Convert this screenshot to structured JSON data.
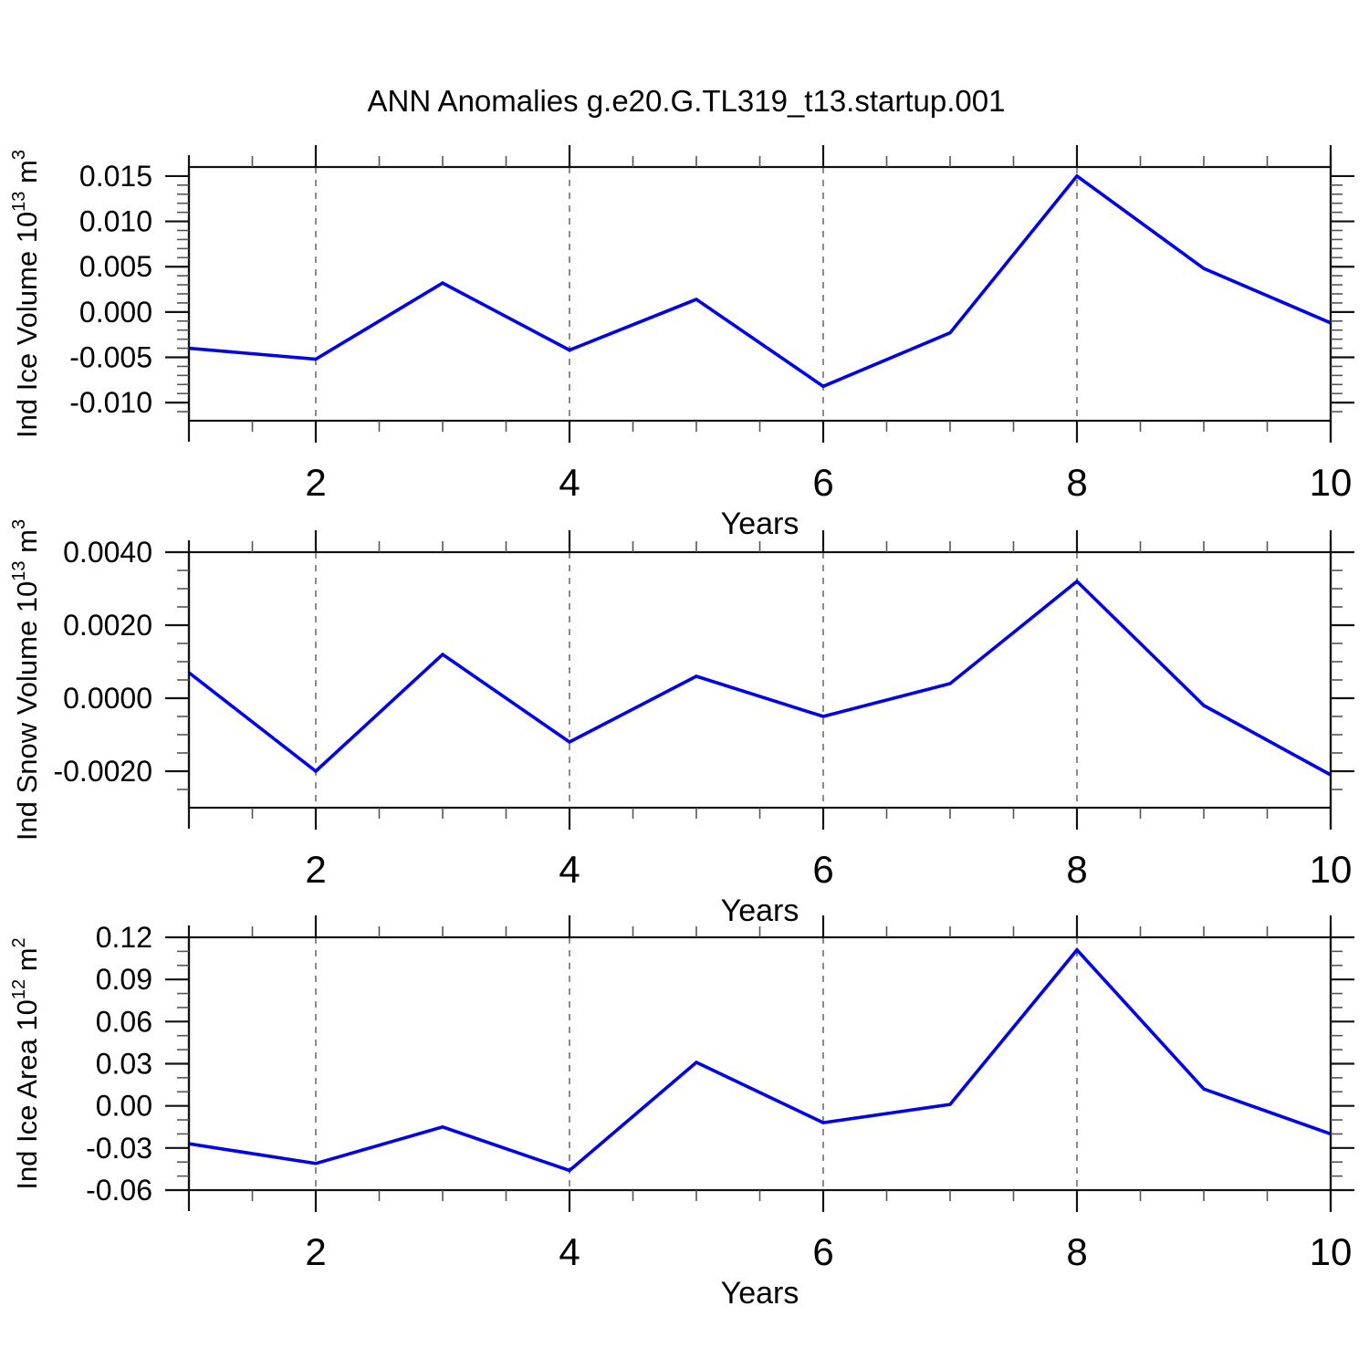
{
  "title": "ANN Anomalies g.e20.G.TL319_t13.startup.001",
  "colors": {
    "line": "#0000ee",
    "axis": "#111111",
    "minor_tick": "#555555",
    "grid": "#808080",
    "text": "#000000",
    "background": "#ffffff"
  },
  "chart_data": [
    {
      "type": "line",
      "title": "ANN Anomalies g.e20.G.TL319_t13.startup.001",
      "xlabel": "Years",
      "ylabel": "Ind Ice Volume 10^13 m^3",
      "ylabel_parts": [
        [
          "Ind Ice Volume 10",
          false
        ],
        [
          "13",
          true
        ],
        [
          " m",
          false
        ],
        [
          "3",
          true
        ]
      ],
      "x": [
        1,
        2,
        3,
        4,
        5,
        6,
        7,
        8,
        9,
        10
      ],
      "values": [
        -0.004,
        -0.0052,
        0.0032,
        -0.0042,
        0.0014,
        -0.0082,
        -0.0023,
        0.015,
        0.0048,
        -0.0012
      ],
      "xlim": [
        1,
        10
      ],
      "ylim": [
        -0.012,
        0.016
      ],
      "xticks_major": [
        2,
        4,
        6,
        8,
        10
      ],
      "xtick_minor_step": 0.5,
      "yticks_major": [
        {
          "v": 0.015,
          "label": "0.015"
        },
        {
          "v": 0.01,
          "label": "0.010"
        },
        {
          "v": 0.005,
          "label": "0.005"
        },
        {
          "v": 0.0,
          "label": "0.000"
        },
        {
          "v": -0.005,
          "label": "-0.005"
        },
        {
          "v": -0.01,
          "label": "-0.010"
        }
      ],
      "ytick_minor_step": 0.001,
      "grid_x": [
        2,
        4,
        6,
        8
      ],
      "legend": "none",
      "grid_style": "dashed-vertical"
    },
    {
      "type": "line",
      "title": "",
      "xlabel": "Years",
      "ylabel": "Ind Snow Volume 10^13 m^3",
      "ylabel_parts": [
        [
          "Ind Snow Volume 10",
          false
        ],
        [
          "13",
          true
        ],
        [
          " m",
          false
        ],
        [
          "3",
          true
        ]
      ],
      "x": [
        1,
        2,
        3,
        4,
        5,
        6,
        7,
        8,
        9,
        10
      ],
      "values": [
        0.0007,
        -0.002,
        0.0012,
        -0.0012,
        0.0006,
        -0.0005,
        0.0004,
        0.0032,
        -0.0002,
        -0.0021
      ],
      "xlim": [
        1,
        10
      ],
      "ylim": [
        -0.003,
        0.004
      ],
      "xticks_major": [
        2,
        4,
        6,
        8,
        10
      ],
      "xtick_minor_step": 0.5,
      "yticks_major": [
        {
          "v": 0.004,
          "label": "0.0040"
        },
        {
          "v": 0.002,
          "label": "0.0020"
        },
        {
          "v": 0.0,
          "label": "0.0000"
        },
        {
          "v": -0.002,
          "label": "-0.0020"
        }
      ],
      "ytick_minor_step": 0.0005,
      "grid_x": [
        2,
        4,
        6,
        8
      ],
      "legend": "none",
      "grid_style": "dashed-vertical"
    },
    {
      "type": "line",
      "title": "",
      "xlabel": "Years",
      "ylabel": "Ind Ice Area 10^12 m^2",
      "ylabel_parts": [
        [
          "Ind Ice Area 10",
          false
        ],
        [
          "12",
          true
        ],
        [
          " m",
          false
        ],
        [
          "2",
          true
        ]
      ],
      "x": [
        1,
        2,
        3,
        4,
        5,
        6,
        7,
        8,
        9,
        10
      ],
      "values": [
        -0.027,
        -0.041,
        -0.015,
        -0.046,
        0.031,
        -0.012,
        0.001,
        0.111,
        0.012,
        -0.02
      ],
      "xlim": [
        1,
        10
      ],
      "ylim": [
        -0.06,
        0.12
      ],
      "xticks_major": [
        2,
        4,
        6,
        8,
        10
      ],
      "xtick_minor_step": 0.5,
      "yticks_major": [
        {
          "v": 0.12,
          "label": "0.12"
        },
        {
          "v": 0.09,
          "label": "0.09"
        },
        {
          "v": 0.06,
          "label": "0.06"
        },
        {
          "v": 0.03,
          "label": "0.03"
        },
        {
          "v": 0.0,
          "label": "0.00"
        },
        {
          "v": -0.03,
          "label": "-0.03"
        },
        {
          "v": -0.06,
          "label": "-0.06"
        }
      ],
      "ytick_minor_step": 0.01,
      "grid_x": [
        2,
        4,
        6,
        8
      ],
      "legend": "none",
      "grid_style": "dashed-vertical"
    }
  ]
}
